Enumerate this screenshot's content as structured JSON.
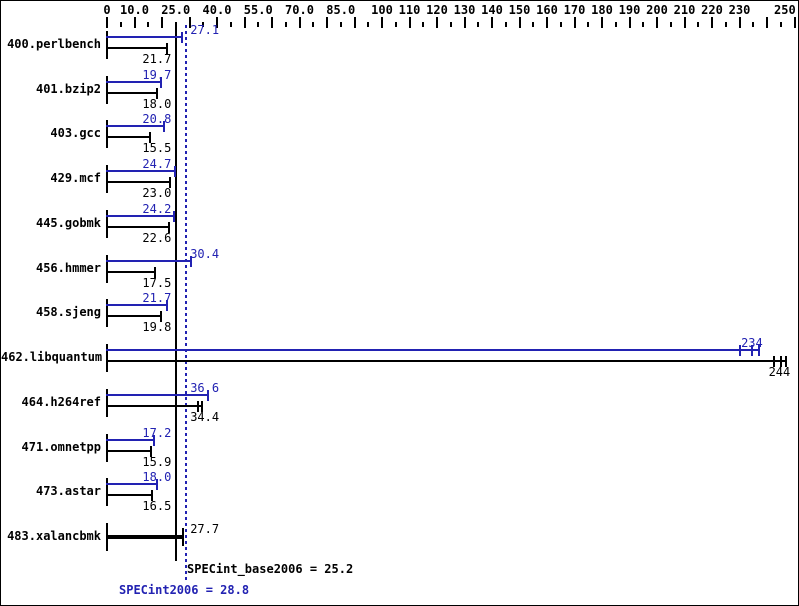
{
  "colors": {
    "peak": "#2222b2",
    "base": "#000000",
    "background": "#ffffff",
    "frame_border": "#000000"
  },
  "footer": {
    "base_text": "SPECint_base2006 = 25.2",
    "peak_text": "SPECint2006 = 28.8"
  },
  "chart_data": {
    "type": "bar",
    "orientation": "horizontal-paired",
    "title": "",
    "xlabel": "",
    "ylabel": "",
    "xlim": [
      0,
      250
    ],
    "grid": false,
    "legend_position": "none",
    "x_tick_minor_step": 5,
    "x_tick_major_step": 10,
    "axis_labels": [
      {
        "v": 0,
        "t": "0"
      },
      {
        "v": 10,
        "t": "10.0"
      },
      {
        "v": 25,
        "t": "25.0"
      },
      {
        "v": 40,
        "t": "40.0"
      },
      {
        "v": 55,
        "t": "55.0"
      },
      {
        "v": 70,
        "t": "70.0"
      },
      {
        "v": 85,
        "t": "85.0"
      },
      {
        "v": 100,
        "t": "100"
      },
      {
        "v": 110,
        "t": "110"
      },
      {
        "v": 120,
        "t": "120"
      },
      {
        "v": 130,
        "t": "130"
      },
      {
        "v": 140,
        "t": "140"
      },
      {
        "v": 150,
        "t": "150"
      },
      {
        "v": 160,
        "t": "160"
      },
      {
        "v": 170,
        "t": "170"
      },
      {
        "v": 180,
        "t": "180"
      },
      {
        "v": 190,
        "t": "190"
      },
      {
        "v": 200,
        "t": "200"
      },
      {
        "v": 210,
        "t": "210"
      },
      {
        "v": 220,
        "t": "220"
      },
      {
        "v": 230,
        "t": "230"
      },
      {
        "v": 250,
        "t": "250"
      }
    ],
    "series": [
      {
        "name": "peak",
        "color": "#2222b2"
      },
      {
        "name": "base",
        "color": "#000000"
      }
    ],
    "benchmarks": [
      {
        "name": "400.perlbench",
        "peak": 27.1,
        "peak_label": "27.1",
        "base": 21.7,
        "base_label": "21.7"
      },
      {
        "name": "401.bzip2",
        "peak": 19.7,
        "peak_label": "19.7",
        "base": 18.0,
        "base_label": "18.0"
      },
      {
        "name": "403.gcc",
        "peak": 20.8,
        "peak_label": "20.8",
        "base": 15.5,
        "base_label": "15.5"
      },
      {
        "name": "429.mcf",
        "peak": 24.7,
        "peak_label": "24.7",
        "base": 23.0,
        "base_label": "23.0"
      },
      {
        "name": "445.gobmk",
        "peak": 24.2,
        "peak_label": "24.2",
        "base": 22.6,
        "base_label": "22.6"
      },
      {
        "name": "456.hmmer",
        "peak": 30.4,
        "peak_label": "30.4",
        "base": 17.5,
        "base_label": "17.5"
      },
      {
        "name": "458.sjeng",
        "peak": 21.7,
        "peak_label": "21.7",
        "base": 19.8,
        "base_label": "19.8"
      },
      {
        "name": "462.libquantum",
        "peak": 234,
        "peak_label": "234",
        "peak_runs": [
          230,
          234.5,
          237
        ],
        "base": 244,
        "base_label": "244",
        "base_runs": [
          242.5,
          245,
          247
        ]
      },
      {
        "name": "464.h264ref",
        "peak": 36.6,
        "peak_label": "36.6",
        "base": 34.4,
        "base_label": "34.4",
        "base_runs": [
          33.2,
          34.5
        ]
      },
      {
        "name": "471.omnetpp",
        "peak": 17.2,
        "peak_label": "17.2",
        "base": 15.9,
        "base_label": "15.9"
      },
      {
        "name": "473.astar",
        "peak": 18.0,
        "peak_label": "18.0",
        "base": 16.5,
        "base_label": "16.5"
      },
      {
        "name": "483.xalancbmk",
        "peak": null,
        "peak_label": "",
        "base": 27.7,
        "base_label": "27.7",
        "single_bar": true
      }
    ],
    "reference_lines": [
      {
        "name": "base_mean",
        "value": 25.2,
        "style": "solid",
        "color": "#000000",
        "label": "SPECint_base2006 = 25.2"
      },
      {
        "name": "peak_mean",
        "value": 28.8,
        "style": "dotted",
        "color": "#2222b2",
        "label": "SPECint2006 = 28.8"
      }
    ]
  }
}
